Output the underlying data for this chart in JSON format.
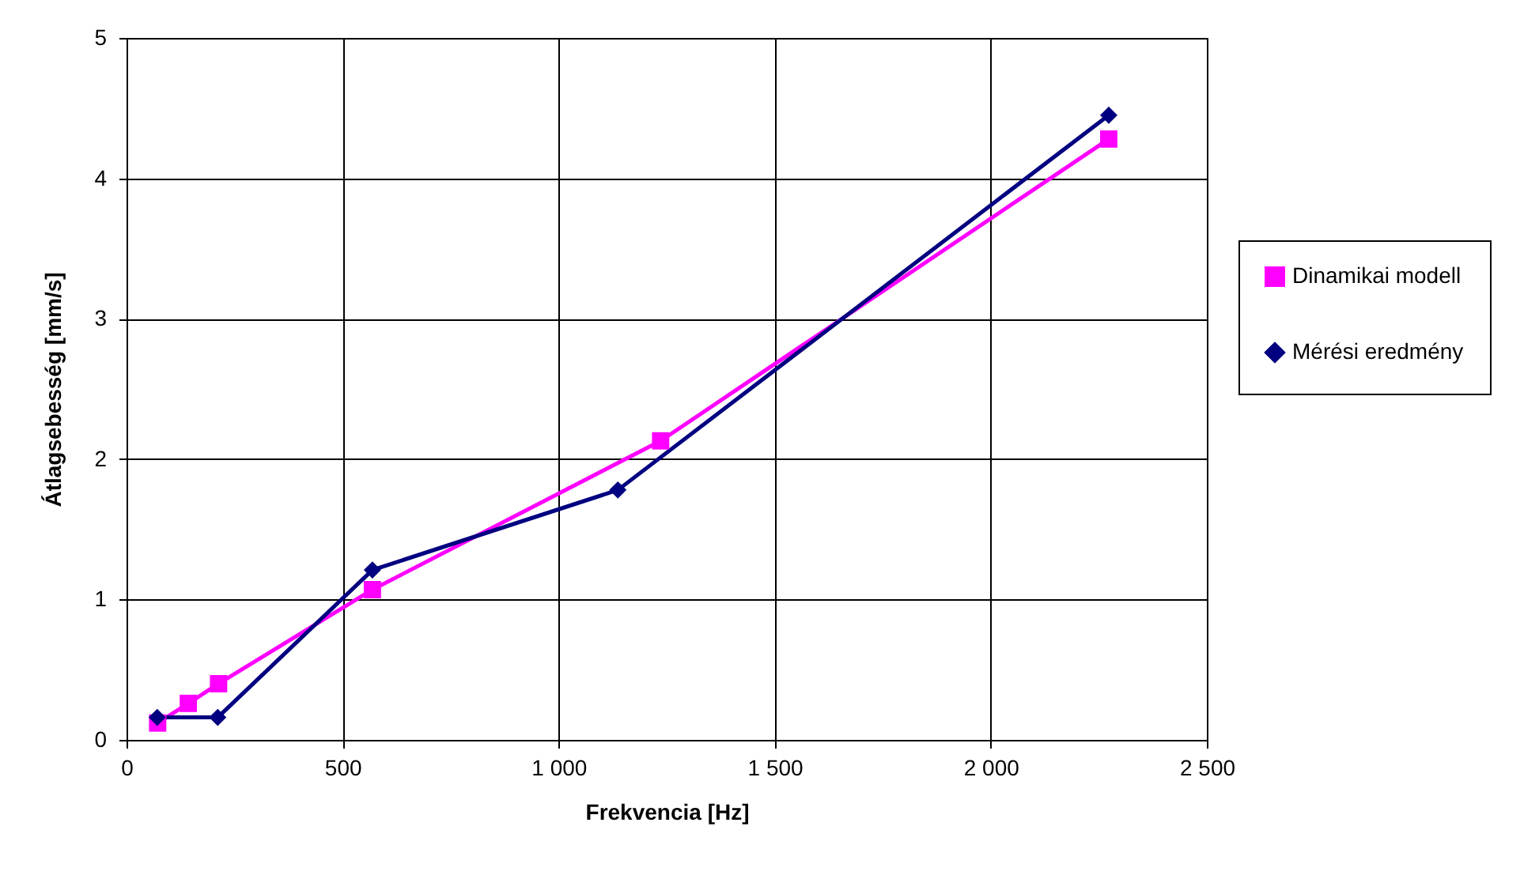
{
  "chart_data": {
    "type": "line",
    "xlabel": "Frekvencia [Hz]",
    "ylabel": "Átlagsebesség [mm/s]",
    "xlim": [
      0,
      2500
    ],
    "xticks": [
      0,
      500,
      {
        "value": 1000,
        "label": "1 000"
      },
      {
        "value": 1500,
        "label": "1 500"
      },
      {
        "value": 2000,
        "label": "2 000"
      },
      {
        "value": 2500,
        "label": "2 500"
      }
    ],
    "ylim": [
      0,
      5
    ],
    "yticks": [
      0,
      1,
      2,
      3,
      4,
      5
    ],
    "grid": true,
    "legend": "right",
    "line_style": "solid",
    "series": [
      {
        "name": "Dinamikai modell",
        "color": "#ff00ff",
        "marker": "square",
        "x": [
          72,
          143,
          213,
          569,
          1236,
          2273
        ],
        "values": [
          0.12,
          0.26,
          0.4,
          1.07,
          2.13,
          4.28
        ]
      },
      {
        "name": "Mérési eredmény",
        "color": "#000080",
        "marker": "diamond",
        "x": [
          71,
          211,
          569,
          1137,
          2273
        ],
        "values": [
          0.16,
          0.16,
          1.21,
          1.78,
          4.45
        ]
      }
    ]
  }
}
